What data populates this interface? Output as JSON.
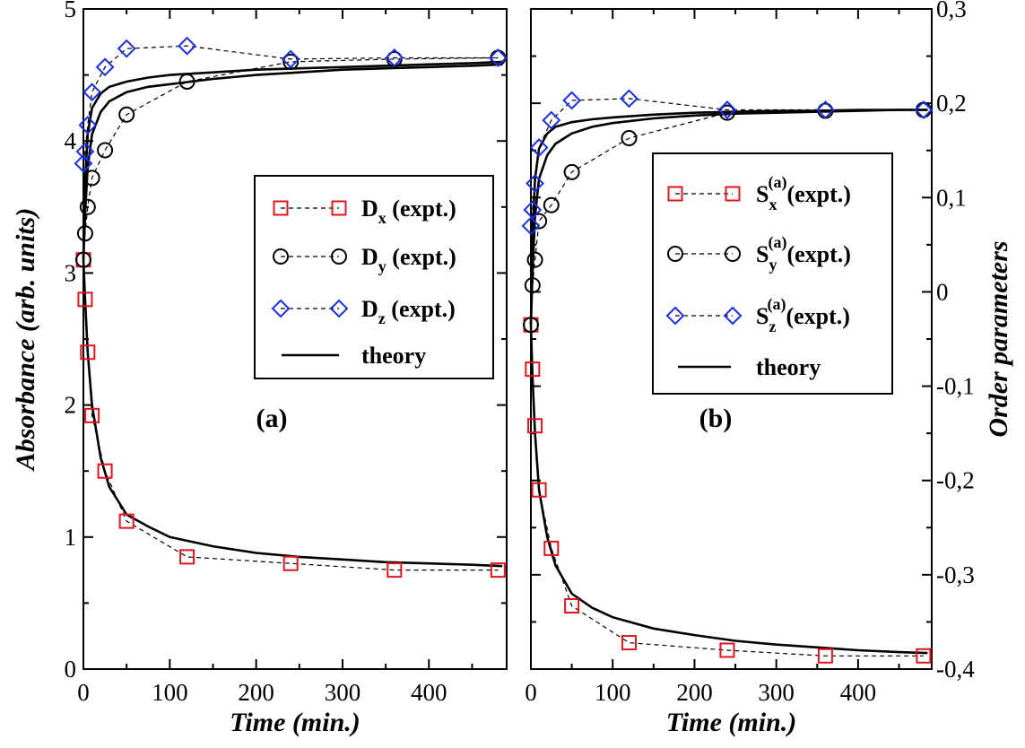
{
  "colors": {
    "x": "#e0141e",
    "y": "#000000",
    "z": "#1d2fd8",
    "theory": "#000000"
  },
  "chart_data": [
    {
      "type": "line",
      "panel_label": "(a)",
      "xlabel": "Time (min.)",
      "ylabel": "Absorbance (arb. units)",
      "xlim": [
        0,
        490
      ],
      "ylim": [
        0,
        5
      ],
      "x_ticks": [
        0,
        100,
        200,
        300,
        400
      ],
      "y_ticks": [
        0,
        1,
        2,
        3,
        4,
        5
      ],
      "grid": false,
      "legend_position": "right",
      "series": [
        {
          "name": "D",
          "sub": "x",
          "suffix": " (expt.)",
          "marker": "square",
          "color": "#e0141e",
          "x": [
            0,
            2,
            5,
            10,
            25,
            50,
            120,
            240,
            360,
            480
          ],
          "y": [
            3.1,
            2.8,
            2.4,
            1.92,
            1.5,
            1.12,
            0.85,
            0.8,
            0.75,
            0.75
          ]
        },
        {
          "name": "D",
          "sub": "y",
          "suffix": " (expt.)",
          "marker": "circle",
          "color": "#000000",
          "x": [
            0,
            2,
            5,
            10,
            25,
            50,
            120,
            240,
            360,
            480
          ],
          "y": [
            3.1,
            3.3,
            3.5,
            3.72,
            3.93,
            4.2,
            4.45,
            4.6,
            4.62,
            4.63
          ]
        },
        {
          "name": "D",
          "sub": "z",
          "suffix": " (expt.)",
          "marker": "diamond",
          "color": "#1d2fd8",
          "x": [
            0,
            2,
            5,
            10,
            25,
            50,
            120,
            240,
            360,
            480
          ],
          "y": [
            3.83,
            3.92,
            4.12,
            4.37,
            4.56,
            4.7,
            4.72,
            4.62,
            4.63,
            4.63
          ]
        }
      ],
      "theory": {
        "name": "theory",
        "curves": [
          {
            "x": [
              0,
              2,
              5,
              10,
              20,
              30,
              50,
              75,
              100,
              150,
              200,
              250,
              300,
              350,
              400,
              450,
              485
            ],
            "y": [
              3.1,
              2.8,
              2.4,
              2.0,
              1.6,
              1.38,
              1.17,
              1.08,
              1.0,
              0.93,
              0.88,
              0.85,
              0.83,
              0.81,
              0.8,
              0.79,
              0.78
            ]
          },
          {
            "x": [
              0,
              2,
              5,
              10,
              20,
              30,
              50,
              75,
              100,
              150,
              200,
              250,
              300,
              350,
              400,
              450,
              485
            ],
            "y": [
              3.1,
              3.45,
              3.8,
              4.05,
              4.22,
              4.3,
              4.37,
              4.41,
              4.43,
              4.47,
              4.5,
              4.52,
              4.54,
              4.55,
              4.56,
              4.57,
              4.58
            ]
          },
          {
            "x": [
              0,
              2,
              5,
              10,
              20,
              30,
              50,
              75,
              100,
              150,
              200,
              250,
              300,
              350,
              400,
              450,
              485
            ],
            "y": [
              3.1,
              3.7,
              4.05,
              4.25,
              4.36,
              4.41,
              4.45,
              4.48,
              4.5,
              4.52,
              4.54,
              4.55,
              4.56,
              4.57,
              4.58,
              4.59,
              4.6
            ]
          }
        ]
      }
    },
    {
      "type": "line",
      "panel_label": "(b)",
      "xlabel": "Time (min.)",
      "ylabel": "Order parameters",
      "xlim": [
        0,
        490
      ],
      "ylim": [
        -0.4,
        0.3
      ],
      "x_ticks": [
        0,
        100,
        200,
        300,
        400
      ],
      "y_ticks": [
        -0.4,
        -0.3,
        -0.2,
        -0.1,
        0,
        0.1,
        0.2,
        0.3
      ],
      "y_tick_labels": [
        "-0,4",
        "-0,3",
        "-0,2",
        "-0,1",
        "0",
        "0,1",
        "0,2",
        "0,3"
      ],
      "grid": false,
      "legend_position": "right",
      "series": [
        {
          "name": "S",
          "sub": "x",
          "sup": "(a)",
          "suffix": "(expt.)",
          "marker": "square",
          "color": "#e0141e",
          "x": [
            0,
            2,
            5,
            10,
            25,
            50,
            120,
            240,
            360,
            480
          ],
          "y": [
            -0.035,
            -0.082,
            -0.142,
            -0.21,
            -0.272,
            -0.333,
            -0.372,
            -0.38,
            -0.386,
            -0.386
          ]
        },
        {
          "name": "S",
          "sub": "y",
          "sup": "(a)",
          "suffix": "(expt.)",
          "marker": "circle",
          "color": "#000000",
          "x": [
            0,
            2,
            5,
            10,
            25,
            50,
            120,
            240,
            360,
            480
          ],
          "y": [
            -0.035,
            0.007,
            0.034,
            0.075,
            0.092,
            0.127,
            0.163,
            0.19,
            0.192,
            0.193
          ]
        },
        {
          "name": "S",
          "sub": "z",
          "sup": "(a)",
          "suffix": "(expt.)",
          "marker": "diamond",
          "color": "#1d2fd8",
          "x": [
            0,
            2,
            5,
            10,
            25,
            50,
            120,
            240,
            360,
            480
          ],
          "y": [
            0.07,
            0.087,
            0.115,
            0.153,
            0.182,
            0.203,
            0.205,
            0.193,
            0.193,
            0.193
          ]
        }
      ],
      "theory": {
        "name": "theory",
        "curves": [
          {
            "x": [
              0,
              2,
              5,
              10,
              20,
              30,
              50,
              75,
              100,
              150,
              200,
              250,
              300,
              350,
              400,
              450,
              485
            ],
            "y": [
              -0.035,
              -0.09,
              -0.15,
              -0.21,
              -0.26,
              -0.29,
              -0.32,
              -0.335,
              -0.345,
              -0.357,
              -0.364,
              -0.37,
              -0.374,
              -0.377,
              -0.38,
              -0.382,
              -0.383
            ]
          },
          {
            "x": [
              0,
              2,
              5,
              10,
              20,
              30,
              50,
              75,
              100,
              150,
              200,
              250,
              300,
              350,
              400,
              450,
              485
            ],
            "y": [
              -0.035,
              0.02,
              0.08,
              0.12,
              0.145,
              0.157,
              0.168,
              0.175,
              0.179,
              0.184,
              0.187,
              0.189,
              0.19,
              0.191,
              0.192,
              0.193,
              0.193
            ]
          },
          {
            "x": [
              0,
              2,
              5,
              10,
              20,
              30,
              50,
              75,
              100,
              150,
              200,
              250,
              300,
              350,
              400,
              450,
              485
            ],
            "y": [
              -0.035,
              0.06,
              0.12,
              0.152,
              0.168,
              0.175,
              0.18,
              0.183,
              0.185,
              0.188,
              0.19,
              0.191,
              0.192,
              0.192,
              0.193,
              0.193,
              0.193
            ]
          }
        ]
      }
    }
  ]
}
